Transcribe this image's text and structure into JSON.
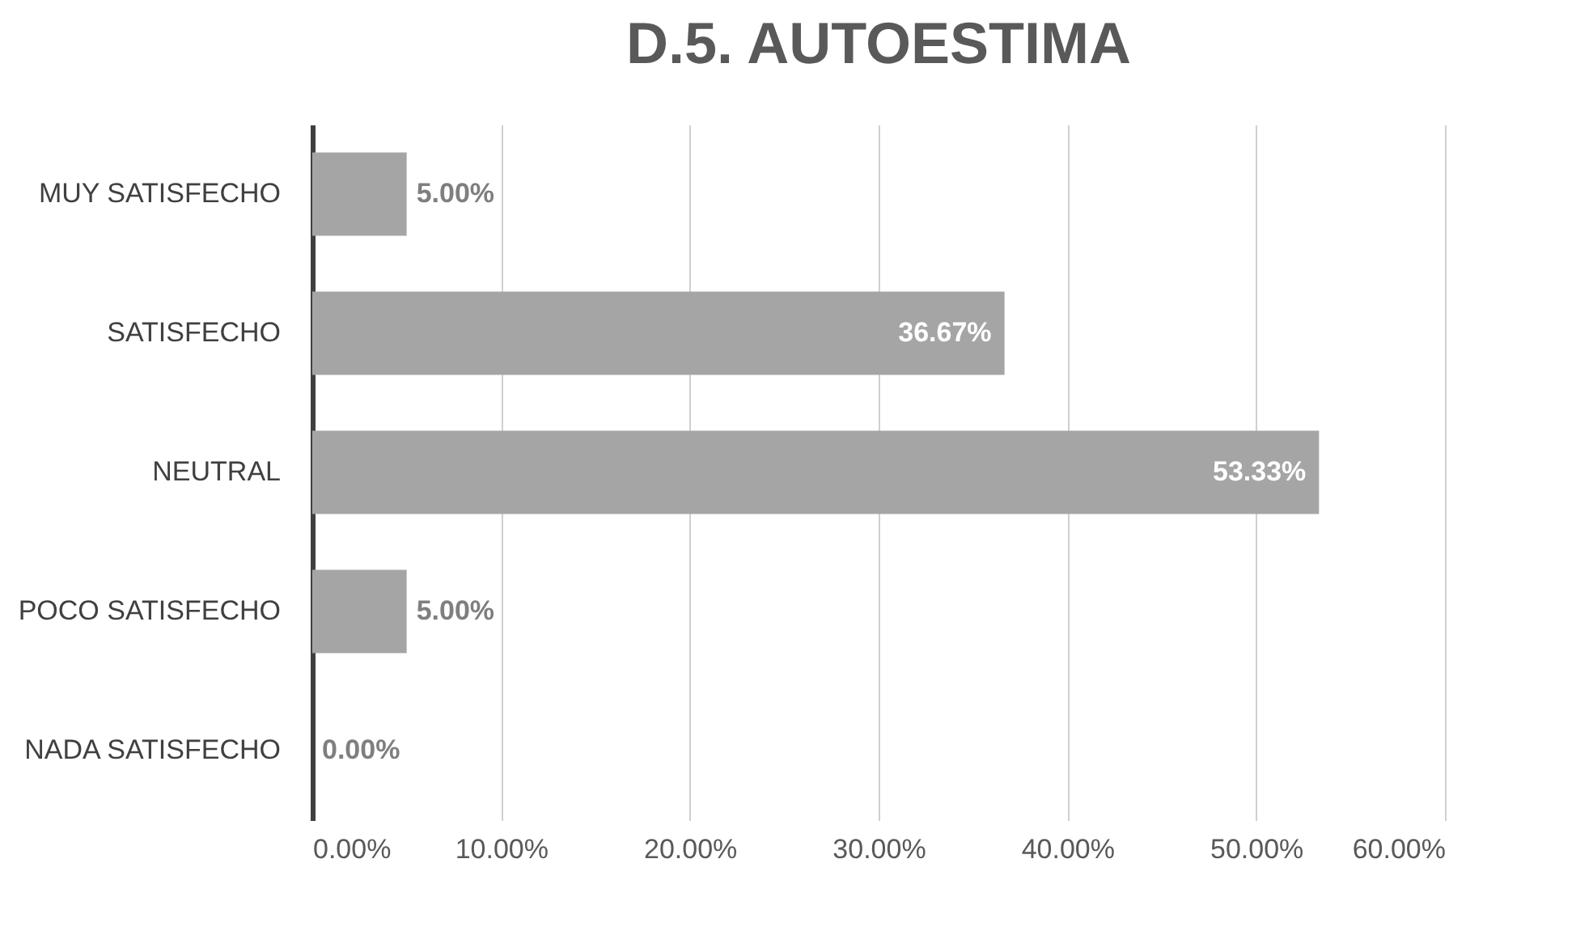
{
  "chart_data": {
    "type": "bar",
    "orientation": "horizontal",
    "title": "D.5. AUTOESTIMA",
    "categories": [
      "MUY SATISFECHO",
      "SATISFECHO",
      "NEUTRAL",
      "POCO SATISFECHO",
      "NADA SATISFECHO"
    ],
    "values": [
      5.0,
      36.67,
      53.33,
      5.0,
      0.0
    ],
    "value_labels": [
      "5.00%",
      "36.67%",
      "53.33%",
      "5.00%",
      "0.00%"
    ],
    "color": "#a5a5a5",
    "xlim": [
      0,
      60
    ],
    "xticks": [
      {
        "value": 0,
        "label": "0.00%"
      },
      {
        "value": 10,
        "label": "10.00%"
      },
      {
        "value": 20,
        "label": "20.00%"
      },
      {
        "value": 30,
        "label": "30.00%"
      },
      {
        "value": 40,
        "label": "40.00%"
      },
      {
        "value": 50,
        "label": "50.00%"
      },
      {
        "value": 60,
        "label": "60.00%"
      }
    ],
    "grid": "x"
  }
}
